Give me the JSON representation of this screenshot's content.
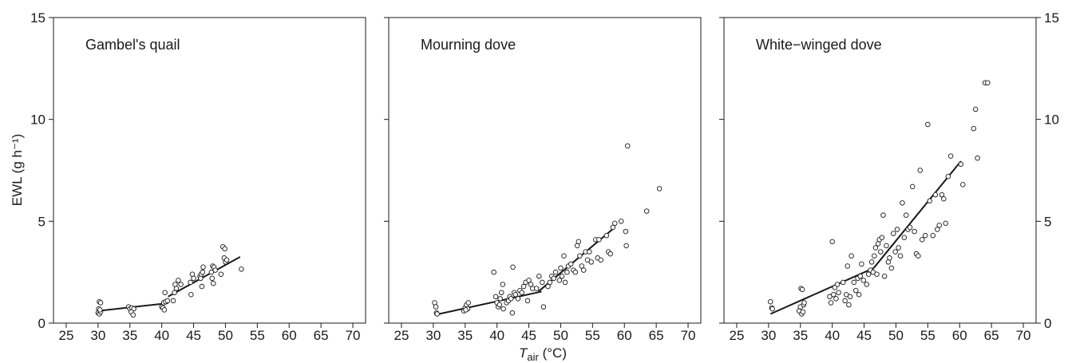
{
  "figure": {
    "ylabel": "EWL (g h⁻¹)",
    "xlabel_main": "T",
    "xlabel_sub": "air",
    "xlabel_unit": " (°C)"
  },
  "chart_data": [
    {
      "type": "scatter",
      "title": "Gambel's quail",
      "xlim": [
        23,
        72
      ],
      "ylim": [
        0,
        15
      ],
      "x_ticks": [
        25,
        30,
        35,
        40,
        45,
        50,
        55,
        60,
        65,
        70
      ],
      "y_ticks": [
        0,
        5,
        10,
        15
      ],
      "y_tick_labels_side": "left",
      "grid": false,
      "points": [
        [
          30.0,
          0.5
        ],
        [
          30.2,
          0.45
        ],
        [
          30.4,
          0.55
        ],
        [
          30.1,
          0.7
        ],
        [
          30.3,
          0.65
        ],
        [
          30.2,
          1.05
        ],
        [
          30.4,
          1.0
        ],
        [
          34.8,
          0.8
        ],
        [
          35.0,
          0.7
        ],
        [
          35.3,
          0.75
        ],
        [
          35.6,
          0.7
        ],
        [
          35.2,
          0.55
        ],
        [
          35.5,
          0.4
        ],
        [
          40.0,
          0.8
        ],
        [
          40.2,
          0.75
        ],
        [
          40.4,
          0.65
        ],
        [
          40.3,
          1.0
        ],
        [
          40.6,
          1.05
        ],
        [
          40.9,
          1.1
        ],
        [
          40.5,
          1.5
        ],
        [
          41.8,
          1.1
        ],
        [
          42.0,
          1.5
        ],
        [
          42.3,
          1.7
        ],
        [
          42.1,
          1.9
        ],
        [
          42.6,
          2.1
        ],
        [
          43.0,
          1.9
        ],
        [
          44.5,
          2.0
        ],
        [
          44.8,
          2.4
        ],
        [
          45.0,
          2.2
        ],
        [
          44.6,
          1.4
        ],
        [
          46.0,
          2.3
        ],
        [
          46.2,
          2.4
        ],
        [
          46.4,
          2.5
        ],
        [
          46.5,
          2.75
        ],
        [
          46.1,
          2.2
        ],
        [
          46.3,
          1.8
        ],
        [
          47.8,
          2.5
        ],
        [
          48.0,
          2.8
        ],
        [
          48.2,
          2.75
        ],
        [
          47.9,
          2.2
        ],
        [
          48.1,
          1.95
        ],
        [
          48.4,
          2.6
        ],
        [
          49.3,
          2.4
        ],
        [
          49.6,
          3.75
        ],
        [
          49.9,
          3.65
        ],
        [
          49.8,
          3.2
        ],
        [
          50.0,
          3.0
        ],
        [
          50.2,
          3.1
        ],
        [
          52.5,
          2.65
        ]
      ],
      "fit_segments": [
        [
          [
            30.0,
            0.6
          ],
          [
            41.0,
            0.98
          ]
        ],
        [
          [
            41.0,
            1.3
          ],
          [
            52.3,
            3.25
          ]
        ]
      ]
    },
    {
      "type": "scatter",
      "title": "Mourning dove",
      "xlim": [
        23,
        72
      ],
      "ylim": [
        0,
        15
      ],
      "x_ticks": [
        25,
        30,
        35,
        40,
        45,
        50,
        55,
        60,
        65,
        70
      ],
      "y_ticks": [
        0,
        5,
        10,
        15
      ],
      "grid": false,
      "points": [
        [
          30.2,
          1.0
        ],
        [
          30.4,
          0.8
        ],
        [
          30.5,
          0.5
        ],
        [
          30.6,
          0.45
        ],
        [
          34.8,
          0.6
        ],
        [
          35.0,
          0.75
        ],
        [
          35.2,
          0.9
        ],
        [
          35.4,
          0.7
        ],
        [
          35.5,
          1.0
        ],
        [
          35.1,
          0.65
        ],
        [
          39.5,
          2.5
        ],
        [
          39.8,
          1.3
        ],
        [
          40.0,
          1.0
        ],
        [
          40.2,
          0.8
        ],
        [
          40.4,
          0.9
        ],
        [
          40.5,
          1.2
        ],
        [
          40.7,
          1.5
        ],
        [
          40.9,
          1.9
        ],
        [
          41.0,
          0.7
        ],
        [
          41.5,
          1.0
        ],
        [
          41.8,
          1.1
        ],
        [
          42.0,
          1.3
        ],
        [
          42.2,
          1.2
        ],
        [
          42.4,
          0.5
        ],
        [
          42.5,
          2.75
        ],
        [
          42.7,
          1.5
        ],
        [
          42.9,
          1.4
        ],
        [
          43.3,
          1.2
        ],
        [
          43.6,
          1.6
        ],
        [
          43.9,
          1.5
        ],
        [
          44.2,
          1.8
        ],
        [
          44.5,
          2.0
        ],
        [
          44.8,
          1.1
        ],
        [
          45.0,
          2.1
        ],
        [
          45.3,
          1.9
        ],
        [
          45.6,
          1.7
        ],
        [
          46.2,
          1.7
        ],
        [
          46.6,
          2.3
        ],
        [
          47.1,
          2.0
        ],
        [
          47.3,
          0.8
        ],
        [
          48.0,
          1.8
        ],
        [
          48.3,
          2.0
        ],
        [
          48.6,
          2.3
        ],
        [
          48.9,
          2.2
        ],
        [
          49.2,
          2.5
        ],
        [
          49.8,
          2.1
        ],
        [
          50.0,
          2.7
        ],
        [
          50.2,
          2.3
        ],
        [
          50.5,
          3.3
        ],
        [
          50.7,
          2.0
        ],
        [
          51.0,
          2.5
        ],
        [
          51.2,
          2.8
        ],
        [
          51.6,
          2.9
        ],
        [
          52.0,
          2.6
        ],
        [
          52.3,
          2.5
        ],
        [
          52.6,
          3.8
        ],
        [
          52.8,
          4.0
        ],
        [
          53.0,
          3.3
        ],
        [
          53.3,
          2.8
        ],
        [
          53.6,
          2.6
        ],
        [
          53.9,
          3.5
        ],
        [
          54.2,
          3.1
        ],
        [
          54.5,
          3.5
        ],
        [
          54.8,
          3.0
        ],
        [
          55.5,
          4.1
        ],
        [
          55.8,
          3.2
        ],
        [
          56.0,
          4.1
        ],
        [
          56.3,
          3.1
        ],
        [
          57.2,
          4.3
        ],
        [
          57.5,
          3.5
        ],
        [
          57.8,
          3.4
        ],
        [
          58.2,
          4.7
        ],
        [
          58.5,
          4.9
        ],
        [
          59.5,
          5.0
        ],
        [
          60.2,
          4.5
        ],
        [
          60.3,
          3.8
        ],
        [
          60.5,
          8.7
        ],
        [
          63.5,
          5.5
        ],
        [
          65.5,
          6.6
        ]
      ],
      "fit_segments": [
        [
          [
            30.2,
            0.4
          ],
          [
            47.0,
            1.55
          ]
        ],
        [
          [
            46.5,
            1.55
          ],
          [
            58.5,
            4.7
          ]
        ]
      ]
    },
    {
      "type": "scatter",
      "title": "White−winged dove",
      "xlim": [
        23,
        72
      ],
      "ylim": [
        0,
        15
      ],
      "x_ticks": [
        25,
        30,
        35,
        40,
        45,
        50,
        55,
        60,
        65,
        70
      ],
      "y_ticks": [
        0,
        5,
        10,
        15
      ],
      "y_tick_labels_side": "right",
      "grid": false,
      "points": [
        [
          30.3,
          1.05
        ],
        [
          30.5,
          0.75
        ],
        [
          30.6,
          0.7
        ],
        [
          34.8,
          0.6
        ],
        [
          35.0,
          0.8
        ],
        [
          35.1,
          1.7
        ],
        [
          35.2,
          0.45
        ],
        [
          35.3,
          1.65
        ],
        [
          35.4,
          0.55
        ],
        [
          35.5,
          0.9
        ],
        [
          35.6,
          1.0
        ],
        [
          39.6,
          1.3
        ],
        [
          39.8,
          1.0
        ],
        [
          40.0,
          4.0
        ],
        [
          40.2,
          1.4
        ],
        [
          40.4,
          1.75
        ],
        [
          40.6,
          1.2
        ],
        [
          40.8,
          1.9
        ],
        [
          41.0,
          1.5
        ],
        [
          41.7,
          2.0
        ],
        [
          42.0,
          1.1
        ],
        [
          42.2,
          1.4
        ],
        [
          42.4,
          2.8
        ],
        [
          42.6,
          0.9
        ],
        [
          42.8,
          1.3
        ],
        [
          43.0,
          3.3
        ],
        [
          43.4,
          2.0
        ],
        [
          43.7,
          1.6
        ],
        [
          44.0,
          2.2
        ],
        [
          44.2,
          1.4
        ],
        [
          44.4,
          2.3
        ],
        [
          44.6,
          2.9
        ],
        [
          44.9,
          2.1
        ],
        [
          45.4,
          1.9
        ],
        [
          45.7,
          2.4
        ],
        [
          46.0,
          2.6
        ],
        [
          46.2,
          3.0
        ],
        [
          46.4,
          2.5
        ],
        [
          46.6,
          3.3
        ],
        [
          46.8,
          3.7
        ],
        [
          47.0,
          2.4
        ],
        [
          47.2,
          3.9
        ],
        [
          47.4,
          4.1
        ],
        [
          47.6,
          3.5
        ],
        [
          47.8,
          4.2
        ],
        [
          48.0,
          5.3
        ],
        [
          48.2,
          2.3
        ],
        [
          48.5,
          3.8
        ],
        [
          48.8,
          3.0
        ],
        [
          49.0,
          3.2
        ],
        [
          49.3,
          2.7
        ],
        [
          49.6,
          4.4
        ],
        [
          49.9,
          3.5
        ],
        [
          50.2,
          4.6
        ],
        [
          50.4,
          3.7
        ],
        [
          50.7,
          3.3
        ],
        [
          51.0,
          5.9
        ],
        [
          51.3,
          4.2
        ],
        [
          51.6,
          5.3
        ],
        [
          51.9,
          4.6
        ],
        [
          52.2,
          4.7
        ],
        [
          52.6,
          6.7
        ],
        [
          52.9,
          4.5
        ],
        [
          53.2,
          3.4
        ],
        [
          53.5,
          3.3
        ],
        [
          53.8,
          7.5
        ],
        [
          54.1,
          4.1
        ],
        [
          54.6,
          4.3
        ],
        [
          55.0,
          9.75
        ],
        [
          55.3,
          6.0
        ],
        [
          55.8,
          4.3
        ],
        [
          56.2,
          6.3
        ],
        [
          56.5,
          4.6
        ],
        [
          56.8,
          4.8
        ],
        [
          57.2,
          6.3
        ],
        [
          57.5,
          6.1
        ],
        [
          57.8,
          4.9
        ],
        [
          58.2,
          7.2
        ],
        [
          58.6,
          8.2
        ],
        [
          60.2,
          7.8
        ],
        [
          60.5,
          6.8
        ],
        [
          62.2,
          9.55
        ],
        [
          62.5,
          10.5
        ],
        [
          62.8,
          8.1
        ],
        [
          64.0,
          11.8
        ],
        [
          64.4,
          11.8
        ]
      ],
      "fit_segments": [
        [
          [
            30.3,
            0.45
          ],
          [
            46.5,
            2.7
          ]
        ],
        [
          [
            46.5,
            2.7
          ],
          [
            60.2,
            7.95
          ]
        ]
      ]
    }
  ]
}
